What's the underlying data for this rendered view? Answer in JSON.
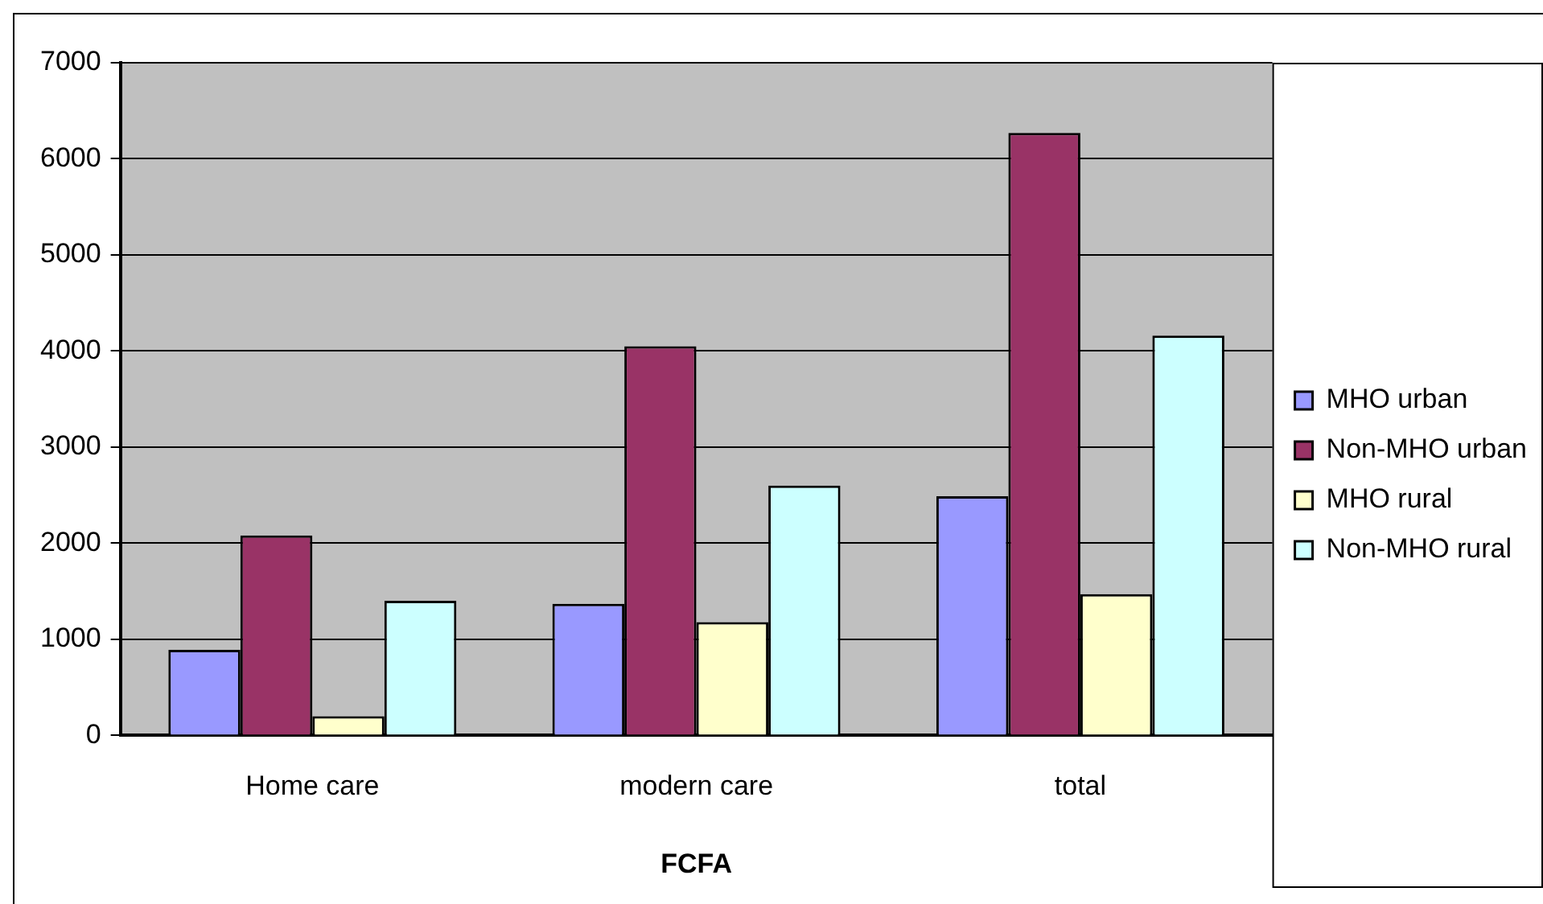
{
  "chart_data": {
    "type": "bar",
    "xlabel": "FCFA",
    "categories": [
      "Home care",
      "modern care",
      "total"
    ],
    "series": [
      {
        "name": "MHO urban",
        "color": "#9999ff",
        "values": [
          890,
          1370,
          2490
        ]
      },
      {
        "name": "Non-MHO urban",
        "color": "#993366",
        "values": [
          2080,
          4050,
          6270
        ]
      },
      {
        "name": "MHO rural",
        "color": "#ffffcc",
        "values": [
          200,
          1180,
          1470
        ]
      },
      {
        "name": "Non-MHO rural",
        "color": "#ccffff",
        "values": [
          1400,
          2600,
          4160
        ]
      }
    ],
    "ylim": [
      0,
      7000
    ],
    "yticks": [
      0,
      1000,
      2000,
      3000,
      4000,
      5000,
      6000,
      7000
    ],
    "grid": "y",
    "legend": "right"
  }
}
